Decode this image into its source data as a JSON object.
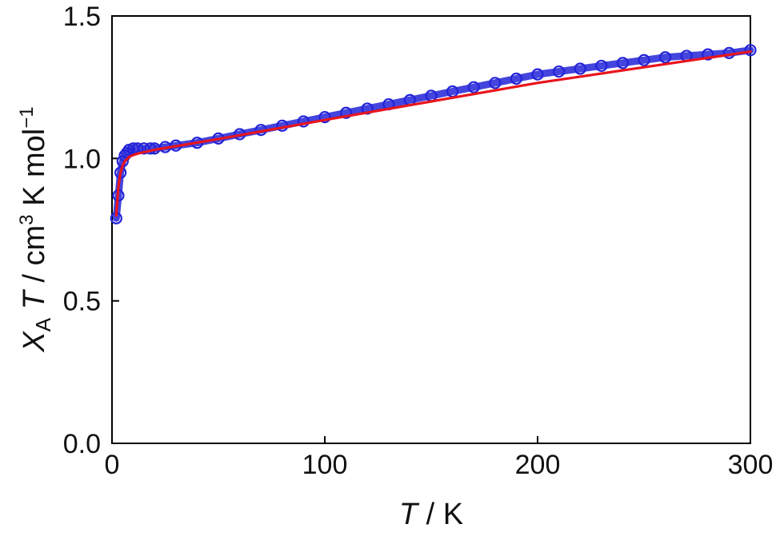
{
  "chart_data": {
    "type": "scatter",
    "xlabel": {
      "var": "T",
      "unit": " / K"
    },
    "ylabel": {
      "var": "X",
      "sub": "A",
      "var2": " T",
      "unit": " / cm",
      "sup": "3",
      "unit2": " K mol",
      "sup2": "−1"
    },
    "xlim": [
      0,
      300
    ],
    "ylim": [
      0.0,
      1.5
    ],
    "x_ticks": [
      0,
      100,
      200,
      300
    ],
    "x_tick_labels": [
      "0",
      "100",
      "200",
      "300"
    ],
    "y_ticks": [
      0.0,
      0.5,
      1.0,
      1.5
    ],
    "y_tick_labels": [
      "0.0",
      "0.5",
      "1.0",
      "1.5"
    ],
    "grid": false,
    "series": [
      {
        "style": "markers",
        "marker": "open-circle",
        "color": "#2323d8",
        "x": [
          2,
          3,
          4,
          5,
          6,
          7,
          8,
          10,
          12,
          15,
          18,
          20,
          25,
          30,
          40,
          50,
          60,
          70,
          80,
          90,
          100,
          110,
          120,
          130,
          140,
          150,
          160,
          170,
          180,
          190,
          200,
          210,
          220,
          230,
          240,
          250,
          260,
          270,
          280,
          290,
          300
        ],
        "y": [
          0.79,
          0.87,
          0.95,
          0.99,
          1.01,
          1.02,
          1.03,
          1.035,
          1.035,
          1.035,
          1.035,
          1.035,
          1.04,
          1.045,
          1.055,
          1.07,
          1.085,
          1.1,
          1.115,
          1.13,
          1.145,
          1.16,
          1.175,
          1.19,
          1.205,
          1.22,
          1.235,
          1.25,
          1.265,
          1.28,
          1.295,
          1.305,
          1.315,
          1.325,
          1.335,
          1.345,
          1.355,
          1.36,
          1.365,
          1.37,
          1.38
        ]
      },
      {
        "style": "line",
        "color": "#e8151c",
        "x": [
          2,
          3,
          4,
          5,
          6,
          8,
          10,
          12,
          15,
          20,
          30,
          50,
          100,
          150,
          200,
          250,
          300
        ],
        "y": [
          0.8,
          0.9,
          0.95,
          0.975,
          0.99,
          1.005,
          1.012,
          1.017,
          1.022,
          1.03,
          1.043,
          1.068,
          1.135,
          1.2,
          1.265,
          1.32,
          1.375
        ]
      }
    ]
  }
}
